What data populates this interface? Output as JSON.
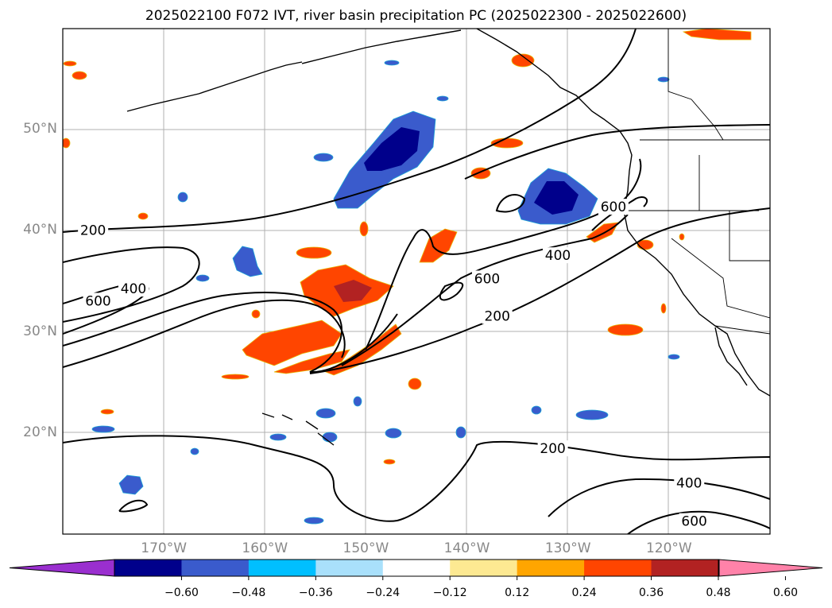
{
  "title": "2025022100 F072 IVT, river basin precipitation PC (2025022300 - 2025022600)",
  "map": {
    "lon_range": [
      -180,
      -110
    ],
    "lat_range": [
      10,
      60
    ],
    "lat_ticks": [
      {
        "value": 50,
        "label": "50°N"
      },
      {
        "value": 40,
        "label": "40°N"
      },
      {
        "value": 30,
        "label": "30°N"
      },
      {
        "value": 20,
        "label": "20°N"
      }
    ],
    "lon_ticks": [
      {
        "value": -170,
        "label": "170°W"
      },
      {
        "value": -160,
        "label": "160°W"
      },
      {
        "value": -150,
        "label": "150°W"
      },
      {
        "value": -140,
        "label": "140°W"
      },
      {
        "value": -130,
        "label": "130°W"
      },
      {
        "value": -120,
        "label": "120°W"
      }
    ],
    "contour_labels": [
      {
        "text": "200",
        "lon": -177,
        "lat": 40.0
      },
      {
        "text": "600",
        "lon": -176.5,
        "lat": 33.0
      },
      {
        "text": "400",
        "lon": -173,
        "lat": 34.2
      },
      {
        "text": "600",
        "lon": -138,
        "lat": 35.2
      },
      {
        "text": "200",
        "lon": -137,
        "lat": 31.5
      },
      {
        "text": "400",
        "lon": -131,
        "lat": 37.5
      },
      {
        "text": "600",
        "lon": -125.5,
        "lat": 42.3
      },
      {
        "text": "200",
        "lon": -131.5,
        "lat": 18.4
      },
      {
        "text": "400",
        "lon": -118,
        "lat": 15.0
      },
      {
        "text": "600",
        "lon": -117.5,
        "lat": 11.2
      }
    ]
  },
  "colorbar": {
    "colors": [
      "#9a2fcf",
      "#00008b",
      "#3a5bcc",
      "#00bfff",
      "#a9e0fb",
      "#ffffff",
      "#fde992",
      "#ffa500",
      "#ff4500",
      "#b22222",
      "#ff82a9"
    ],
    "ticks": [
      "−0.60",
      "−0.48",
      "−0.36",
      "−0.24",
      "−0.12",
      "0.12",
      "0.24",
      "0.36",
      "0.48",
      "0.60"
    ]
  }
}
